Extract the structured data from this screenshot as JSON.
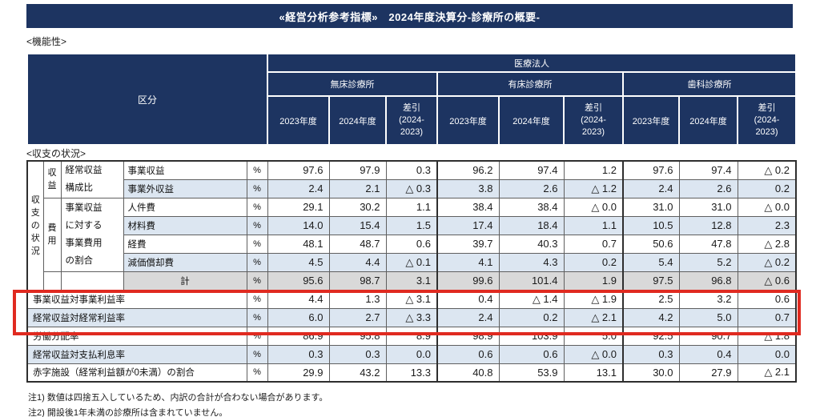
{
  "title": "«経営分析参考指標»　2024年度決算分-診療所の概要-",
  "sections": {
    "functionality": "<機能性>",
    "income": "<収支の状況>"
  },
  "header": {
    "kubun": "区分",
    "corp": "医療法人",
    "groups": [
      "無床診療所",
      "有床診療所",
      "歯科診療所"
    ],
    "cols": [
      "2023年度",
      "2024年度",
      "差引\n(2024-\n2023)"
    ]
  },
  "table": {
    "unit": "%",
    "side_label": "収\n支\nの\n状\n況",
    "revenue_group": "収\n益",
    "revenue_sub": "経常収益\n構成比",
    "expense_group": "費\n用",
    "expense_sub": "事業収益\nに対する\n事業費用\nの割合",
    "rows": [
      {
        "label": "事業収益",
        "values": [
          "97.6",
          "97.9",
          "0.3",
          "96.2",
          "97.4",
          "1.2",
          "97.6",
          "97.4",
          "△ 0.2"
        ]
      },
      {
        "label": "事業外収益",
        "values": [
          "2.4",
          "2.1",
          "△ 0.3",
          "3.8",
          "2.6",
          "△ 1.2",
          "2.4",
          "2.6",
          "0.2"
        ]
      },
      {
        "label": "人件費",
        "values": [
          "29.1",
          "30.2",
          "1.1",
          "38.4",
          "38.4",
          "△ 0.0",
          "31.0",
          "31.0",
          "△ 0.0"
        ]
      },
      {
        "label": "材料費",
        "values": [
          "14.0",
          "15.4",
          "1.5",
          "17.4",
          "18.4",
          "1.1",
          "10.5",
          "12.8",
          "2.3"
        ]
      },
      {
        "label": "経費",
        "values": [
          "48.1",
          "48.7",
          "0.6",
          "39.7",
          "40.3",
          "0.7",
          "50.6",
          "47.8",
          "△ 2.8"
        ]
      },
      {
        "label": "減価償却費",
        "values": [
          "4.5",
          "4.4",
          "△ 0.1",
          "4.1",
          "4.3",
          "0.2",
          "5.4",
          "5.2",
          "△ 0.2"
        ]
      },
      {
        "label": "計",
        "values": [
          "95.6",
          "98.7",
          "3.1",
          "99.6",
          "101.4",
          "1.9",
          "97.5",
          "96.8",
          "△ 0.6"
        ]
      },
      {
        "label": "事業収益対事業利益率",
        "values": [
          "4.4",
          "1.3",
          "△ 3.1",
          "0.4",
          "△ 1.4",
          "△ 1.9",
          "2.5",
          "3.2",
          "0.6"
        ]
      },
      {
        "label": "経常収益対経常利益率",
        "values": [
          "6.0",
          "2.7",
          "△ 3.3",
          "2.4",
          "0.2",
          "△ 2.1",
          "4.2",
          "5.0",
          "0.7"
        ]
      },
      {
        "label": "労働分配率",
        "values": [
          "86.9",
          "95.8",
          "8.9",
          "98.9",
          "103.9",
          "5.0",
          "92.5",
          "90.7",
          "△ 1.8"
        ]
      },
      {
        "label": "経常収益対支払利息率",
        "values": [
          "0.3",
          "0.3",
          "0.0",
          "0.6",
          "0.6",
          "△ 0.0",
          "0.3",
          "0.4",
          "0.0"
        ]
      },
      {
        "label": "赤字施設（経常利益額が0未満）の割合",
        "values": [
          "29.9",
          "43.2",
          "13.3",
          "40.8",
          "53.9",
          "13.1",
          "30.0",
          "27.9",
          "△ 2.1"
        ]
      }
    ]
  },
  "notes": [
    "注1) 数値は四捨五入しているため、内訳の合計が合わない場合があります。",
    "注2) 開設後1年未満の診療所は含まれていません。"
  ],
  "colors": {
    "navy": "#1d3461",
    "row_blue": "#dce6f1",
    "row_gray": "#d9d9d9",
    "highlight_red": "#e02a20"
  }
}
